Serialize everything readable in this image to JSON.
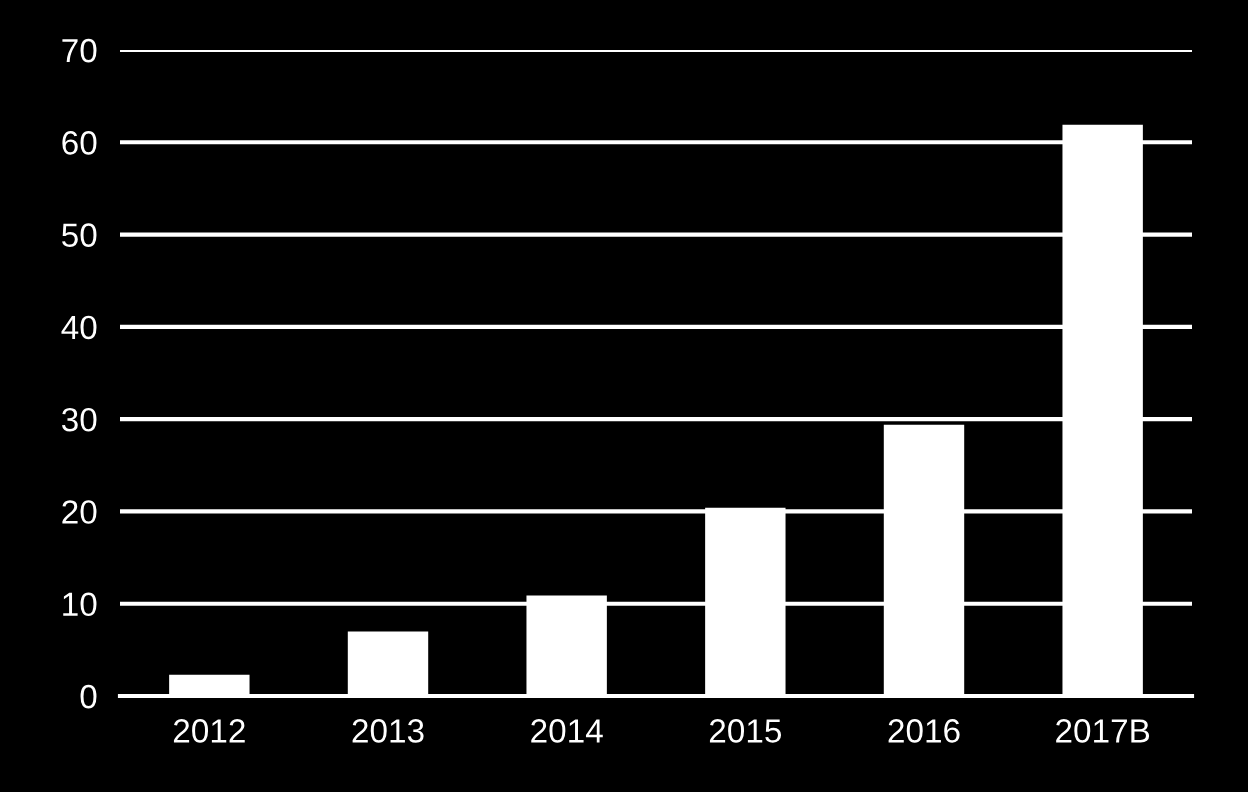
{
  "chart_data": {
    "type": "bar",
    "categories": [
      "2012",
      "2013",
      "2014",
      "2015",
      "2016",
      "2017B"
    ],
    "values": [
      2.3,
      7.0,
      10.9,
      20.4,
      29.4,
      61.9
    ],
    "color": "#ffffff",
    "ylim": [
      0,
      70
    ],
    "yticks": [
      0,
      10,
      20,
      30,
      40,
      50,
      60,
      70
    ],
    "grid": "y",
    "legend": false
  }
}
